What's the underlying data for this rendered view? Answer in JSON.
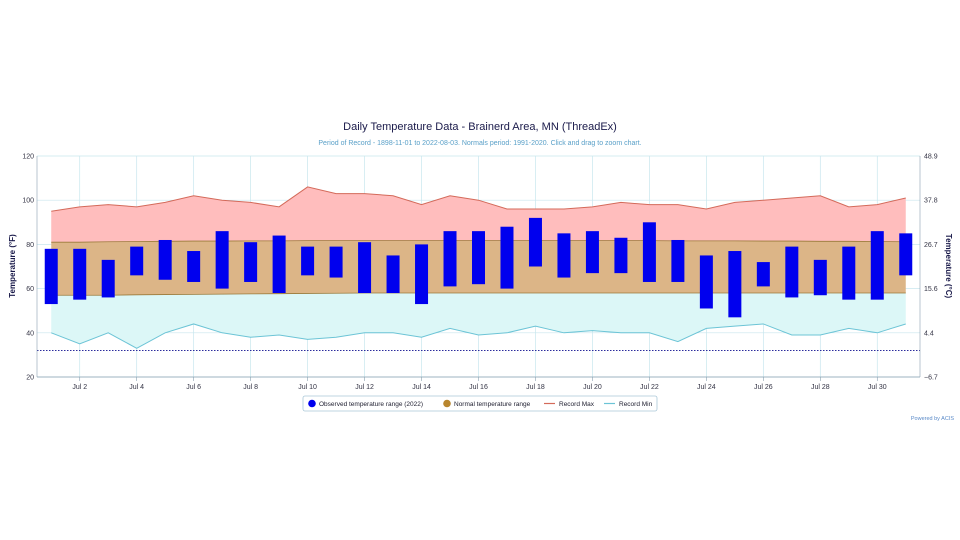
{
  "chart_data": {
    "type": "bar",
    "title": "Daily Temperature Data - Brainerd Area, MN (ThreadEx)",
    "subtitle": "Period of Record - 1898-11-01 to 2022-08-03. Normals period: 1991-2020. Click and drag to zoom chart.",
    "ylabel_left": "Temperature (°F)",
    "ylabel_right": "Temperature (°C)",
    "ylim": [
      20,
      120
    ],
    "yticks_f": [
      "20",
      "40",
      "60",
      "80",
      "100",
      "120"
    ],
    "yticks_c": [
      "−6.7",
      "4.4",
      "15.6",
      "26.7",
      "37.8",
      "48.9"
    ],
    "x_tick_labels": [
      "Jul 2",
      "Jul 4",
      "Jul 6",
      "Jul 8",
      "Jul 10",
      "Jul 12",
      "Jul 14",
      "Jul 16",
      "Jul 18",
      "Jul 20",
      "Jul 22",
      "Jul 24",
      "Jul 26",
      "Jul 28",
      "Jul 30"
    ],
    "x_tick_days": [
      2,
      4,
      6,
      8,
      10,
      12,
      14,
      16,
      18,
      20,
      22,
      24,
      26,
      28,
      30
    ],
    "days": [
      1,
      2,
      3,
      4,
      5,
      6,
      7,
      8,
      9,
      10,
      11,
      12,
      13,
      14,
      15,
      16,
      17,
      18,
      19,
      20,
      21,
      22,
      23,
      24,
      25,
      26,
      27,
      28,
      29,
      30,
      31
    ],
    "observed_min": [
      53,
      55,
      56,
      66,
      64,
      63,
      60,
      63,
      58,
      66,
      65,
      58,
      58,
      53,
      61,
      62,
      60,
      70,
      65,
      67,
      67,
      63,
      63,
      51,
      47,
      61,
      56,
      57,
      55,
      55,
      66
    ],
    "observed_max": [
      78,
      78,
      73,
      79,
      82,
      77,
      86,
      81,
      84,
      79,
      79,
      81,
      75,
      80,
      86,
      86,
      88,
      92,
      85,
      86,
      83,
      90,
      82,
      75,
      77,
      72,
      79,
      73,
      79,
      86,
      85
    ],
    "normal_min": [
      57,
      57,
      57,
      57.2,
      57.3,
      57.4,
      57.5,
      57.6,
      57.7,
      57.8,
      57.9,
      58,
      58,
      58,
      58,
      58,
      58,
      58,
      58,
      58,
      58,
      58,
      58,
      58,
      58,
      58,
      58,
      58,
      58,
      58,
      58
    ],
    "normal_max": [
      81,
      81,
      81.2,
      81.3,
      81.4,
      81.5,
      81.5,
      81.6,
      81.6,
      81.7,
      81.7,
      81.7,
      81.7,
      81.7,
      81.7,
      81.7,
      81.7,
      81.7,
      81.7,
      81.7,
      81.7,
      81.7,
      81.6,
      81.6,
      81.6,
      81.5,
      81.5,
      81.4,
      81.4,
      81.3,
      81.2
    ],
    "record_max": [
      95,
      97,
      98,
      97,
      99,
      102,
      100,
      99,
      97,
      106,
      103,
      103,
      102,
      98,
      102,
      100,
      96,
      96,
      96,
      97,
      99,
      98,
      98,
      96,
      99,
      100,
      101,
      102,
      97,
      98,
      101
    ],
    "record_min": [
      40,
      35,
      40,
      33,
      40,
      44,
      40,
      38,
      39,
      37,
      38,
      40,
      40,
      38,
      42,
      39,
      40,
      43,
      40,
      41,
      40,
      40,
      36,
      42,
      43,
      44,
      39,
      39,
      42,
      40,
      44
    ],
    "series": [
      {
        "name": "Observed temperature range (2022)",
        "color": "#0000ee"
      },
      {
        "name": "Normal temperature range",
        "color": "#b8862e"
      },
      {
        "name": "Record Max",
        "color": "#d46a5a"
      },
      {
        "name": "Record Min",
        "color": "#6cc4d6"
      }
    ],
    "colors": {
      "record_max_fill": "#ffbdbd",
      "normal_fill": "#dcb587",
      "record_min_fill": "#dcf7f7",
      "grid": "#c8e6ee",
      "dotted_line": "#2b2b9c"
    },
    "dotted_line_value": 32,
    "legend_position": "bottom-center",
    "credit": "Powered by ACIS"
  }
}
